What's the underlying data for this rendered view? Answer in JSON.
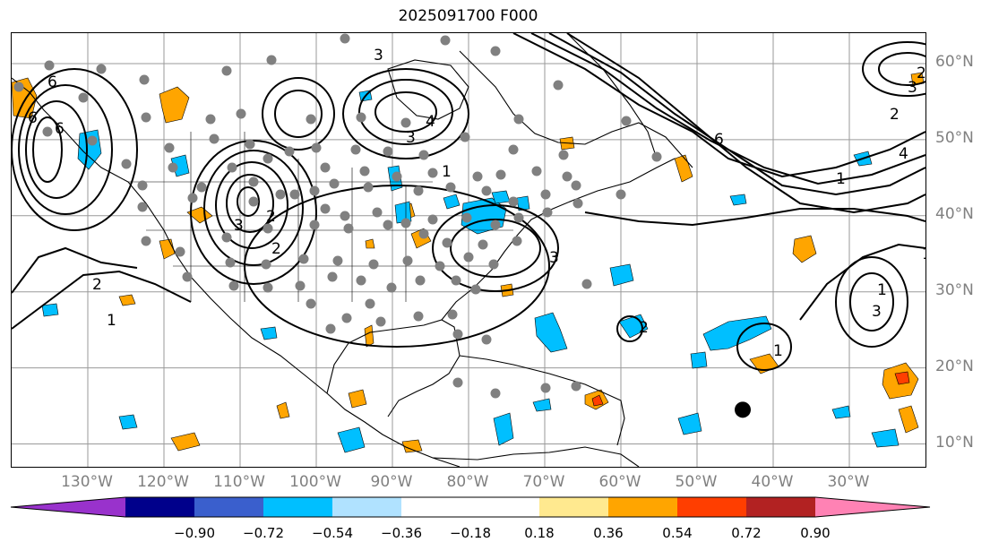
{
  "title": "2025091700 F000",
  "lat_labels": [
    {
      "text": "60°N",
      "lat": 60
    },
    {
      "text": "50°N",
      "lat": 50
    },
    {
      "text": "40°N",
      "lat": 40
    },
    {
      "text": "30°N",
      "lat": 30
    },
    {
      "text": "20°N",
      "lat": 20
    },
    {
      "text": "10°N",
      "lat": 10
    }
  ],
  "lon_labels": [
    {
      "text": "130°W",
      "lon": -130
    },
    {
      "text": "120°W",
      "lon": -120
    },
    {
      "text": "110°W",
      "lon": -110
    },
    {
      "text": "100°W",
      "lon": -100
    },
    {
      "text": "90°W",
      "lon": -90
    },
    {
      "text": "80°W",
      "lon": -80
    },
    {
      "text": "70°W",
      "lon": -70
    },
    {
      "text": "60°W",
      "lon": -60
    },
    {
      "text": "50°W",
      "lon": -50
    },
    {
      "text": "40°W",
      "lon": -40
    },
    {
      "text": "30°W",
      "lon": -30
    }
  ],
  "colorbar": {
    "extend": "both",
    "under_color": "#9932cc",
    "over_color": "#ff82b4",
    "colors": [
      "#00008b",
      "#3a5fcd",
      "#00bfff",
      "#b0e2ff",
      "#ffffff",
      "#ffffff",
      "#ffe98f",
      "#ffa500",
      "#ff3e00",
      "#b22222"
    ],
    "tick_labels": [
      "−0.90",
      "−0.72",
      "−0.54",
      "−0.36",
      "−0.18",
      "0.18",
      "0.36",
      "0.54",
      "0.72",
      "0.90"
    ]
  },
  "contour_labels": [
    "6",
    "3",
    "4",
    "3",
    "1",
    "2",
    "6",
    "3",
    "2",
    "1",
    "2",
    "3",
    "1",
    "1",
    "2",
    "1",
    "6",
    "4",
    "3",
    "2",
    "1",
    "2",
    "3",
    "6"
  ],
  "map_colors": {
    "positive": "#ffa500",
    "strong_positive": "#ff3e00",
    "negative": "#00bfff",
    "station": "#808080",
    "marker": "#000000"
  },
  "marker": {
    "lon": -44,
    "lat": 14.5
  }
}
